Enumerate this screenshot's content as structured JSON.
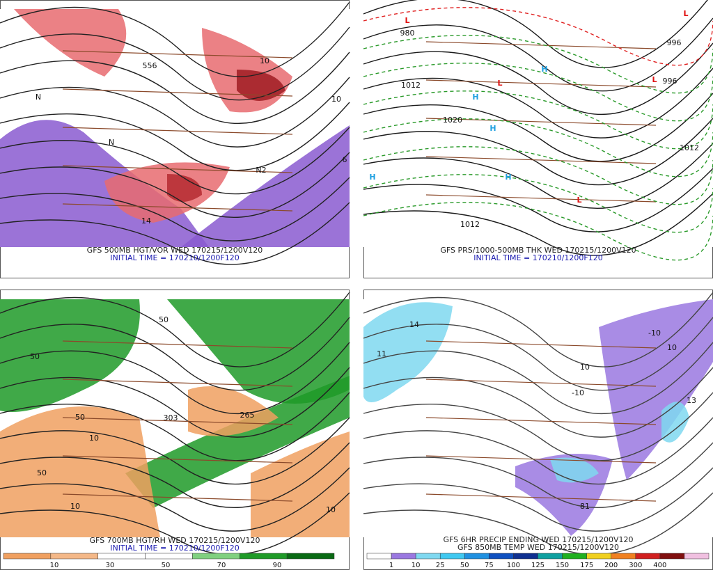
{
  "panels": [
    {
      "caption": "GFS 500MB HGT/VOR WED 170215/1200V120",
      "initial_time": "INITIAL TIME = 170210/1200F120",
      "map_labels": [
        "556",
        "10",
        "14",
        "N",
        "N",
        "N2",
        "10",
        "6"
      ]
    },
    {
      "caption": "GFS PRS/1000-500MB THK WED 170215/1200V120",
      "initial_time": "INITIAL TIME = 170210/1200F120",
      "map_labels": [
        "L",
        "L",
        "L",
        "L",
        "L",
        "H",
        "H",
        "H",
        "H",
        "H",
        "1012",
        "1020",
        "996",
        "1012",
        "1012",
        "980",
        "996"
      ]
    },
    {
      "caption": "GFS 700MB HGT/RH WED 170215/1200V120",
      "initial_time": "INITIAL TIME = 170210/1200F120",
      "map_labels": [
        "50",
        "50",
        "50",
        "10",
        "265",
        "303",
        "10",
        "10",
        "50"
      ],
      "colorbar": [
        "10",
        "30",
        "50",
        "70",
        "90"
      ]
    },
    {
      "caption": "GFS 6HR PRECIP ENDING WED 170215/1200V120",
      "caption_2": "GFS 850MB TEMP WED 170215/1200V120",
      "map_labels": [
        "14",
        "11",
        "10",
        "13",
        "81",
        "-10",
        "-10",
        "10"
      ],
      "colorbar": [
        "1",
        "10",
        "25",
        "50",
        "75",
        "100",
        "125",
        "150",
        "175",
        "200",
        "300",
        "400"
      ]
    }
  ]
}
